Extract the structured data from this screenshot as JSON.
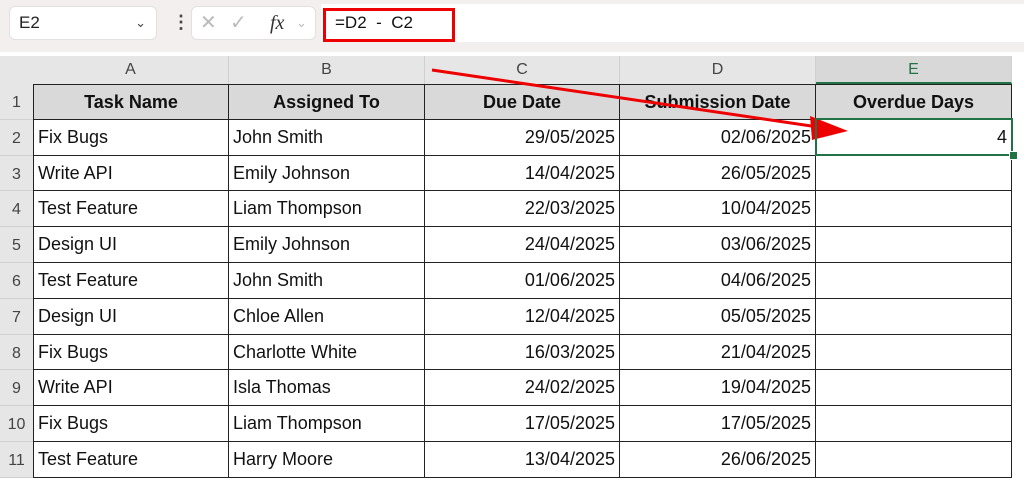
{
  "name_box": "E2",
  "formula": "=D2  -  C2",
  "fx_label": "fx",
  "columns": [
    "A",
    "B",
    "C",
    "D",
    "E"
  ],
  "headers": [
    "Task Name",
    "Assigned To",
    "Due Date",
    "Submission Date",
    "Overdue Days"
  ],
  "rows": [
    [
      "Fix Bugs",
      "John Smith",
      "29/05/2025",
      "02/06/2025",
      "4"
    ],
    [
      "Write API",
      "Emily Johnson",
      "14/04/2025",
      "26/05/2025",
      ""
    ],
    [
      "Test Feature",
      "Liam Thompson",
      "22/03/2025",
      "10/04/2025",
      ""
    ],
    [
      "Design UI",
      "Emily Johnson",
      "24/04/2025",
      "03/06/2025",
      ""
    ],
    [
      "Test Feature",
      "John Smith",
      "01/06/2025",
      "04/06/2025",
      ""
    ],
    [
      "Design UI",
      "Chloe Allen",
      "12/04/2025",
      "05/05/2025",
      ""
    ],
    [
      "Fix Bugs",
      "Charlotte White",
      "16/03/2025",
      "21/04/2025",
      ""
    ],
    [
      "Write API",
      "Isla Thomas",
      "24/02/2025",
      "19/04/2025",
      ""
    ],
    [
      "Fix Bugs",
      "Liam Thompson",
      "17/05/2025",
      "17/05/2025",
      ""
    ],
    [
      "Test Feature",
      "Harry Moore",
      "13/04/2025",
      "26/06/2025",
      ""
    ]
  ],
  "row_numbers": [
    "1",
    "2",
    "3",
    "4",
    "5",
    "6",
    "7",
    "8",
    "9",
    "10",
    "11"
  ],
  "colors": {
    "annotation": "#ee0000",
    "selection": "#217346",
    "header_fill": "#d9d9d9"
  }
}
